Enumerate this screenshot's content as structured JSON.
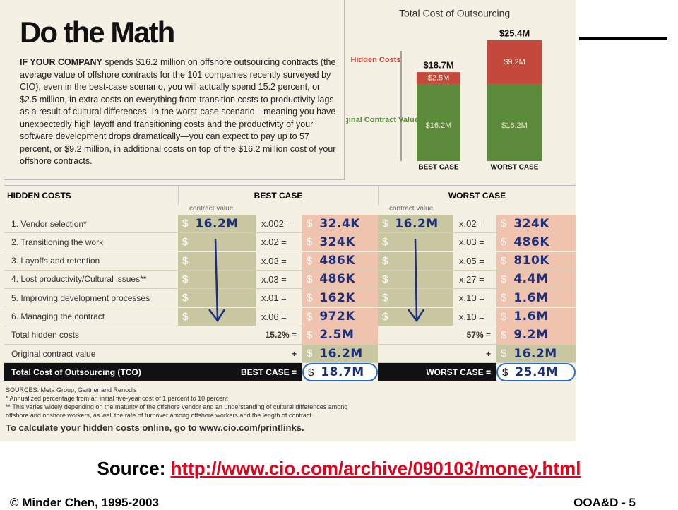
{
  "article": {
    "title": "Do the Math",
    "lead": "IF YOUR COMPANY",
    "body": "spends $16.2 million on offshore outsourcing contracts (the average value of offshore contracts for the 101 companies recently surveyed by CIO), even in the best-case scenario, you will actually spend 15.2 percent, or $2.5 million, in extra costs on everything from transition costs to productivity lags as a result of cultural differences. In the worst-case scenario—meaning you have unexpectedly high layoff and transitioning costs and the productivity of your software development drops dramatically—you can expect to pay up to 57 percent, or $9.2 million, in additional costs on top of the $16.2 million cost of your offshore contracts."
  },
  "chart": {
    "type": "bar",
    "title": "Total Cost of Outsourcing",
    "categories": [
      "BEST CASE",
      "WORST CASE"
    ],
    "series": [
      {
        "name": "Original Contract Value",
        "color": "#5b8a3a",
        "values": [
          16.2,
          16.2
        ],
        "value_labels": [
          "$16.2M",
          "$16.2M"
        ]
      },
      {
        "name": "Hidden Costs",
        "color": "#c4483b",
        "values": [
          2.5,
          9.2
        ],
        "value_labels": [
          "$2.5M",
          "$9.2M"
        ]
      }
    ],
    "totals": [
      "$18.7M",
      "$25.4M"
    ]
  },
  "table": {
    "header": [
      "HIDDEN COSTS",
      "BEST CASE",
      "WORST CASE"
    ],
    "subheader": "contract value",
    "currency": "$",
    "rows": [
      [
        "1. Vendor selection*",
        "16.2M",
        "x.002 =",
        "32.4K",
        "16.2M",
        "x.02 =",
        "324K"
      ],
      [
        "2. Transitioning the work",
        "",
        "x.02 =",
        "324K",
        "",
        "x.03 =",
        "486K"
      ],
      [
        "3. Layoffs and retention",
        "",
        "x.03 =",
        "486K",
        "",
        "x.05 =",
        "810K"
      ],
      [
        "4. Lost productivity/Cultural issues**",
        "",
        "x.03 =",
        "486K",
        "",
        "x.27 =",
        "4.4M"
      ],
      [
        "5. Improving development processes",
        "",
        "x.01 =",
        "162K",
        "",
        "x.10 =",
        "1.6M"
      ],
      [
        "6. Managing the contract",
        "",
        "x.06 =",
        "972K",
        "",
        "x.10 =",
        "1.6M"
      ]
    ],
    "totals": [
      [
        "Total hidden costs",
        "15.2% =",
        "2.5M",
        "57% =",
        "9.2M"
      ],
      [
        "Original contract value",
        "+",
        "16.2M",
        "+",
        "16.2M"
      ],
      [
        "Total Cost of Outsourcing (TCO)",
        "BEST CASE =",
        "18.7M",
        "WORST CASE =",
        "25.4M"
      ]
    ]
  },
  "sources": [
    "SOURCES: Meta Group, Gartner and Renodis",
    "* Annualized percentage from an initial five-year cost of 1 percent to 10 percent",
    "** This varies widely depending on the maturity of the offshore vendor and an understanding of cultural differences among offshore and onshore workers, as well the rate of turnover among offshore workers and the length of contract.",
    "To calculate your hidden costs online, go to www.cio.com/printlinks."
  ],
  "slide": {
    "source_label": "Source:",
    "source_url": "http://www.cio.com/archive/090103/money.html",
    "footer_left": "© Minder Chen, 1995-2003",
    "footer_right": "OOA&D - 5"
  }
}
